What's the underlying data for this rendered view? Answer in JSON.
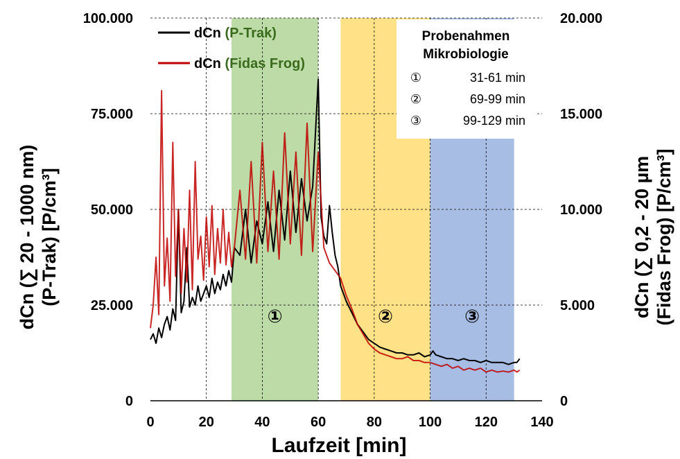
{
  "chart_data": {
    "type": "line",
    "xlabel": "Laufzeit [min]",
    "ylabel_left": [
      "dCn (∑ 20 - 1000 nm)",
      "(P-Trak) [P/cm³]"
    ],
    "ylabel_right": [
      "dCn (∑ 0,2 - 20 µm",
      "(Fidas Frog) [P/cm³]"
    ],
    "xlim": [
      0,
      140
    ],
    "ylim_left": [
      0,
      100000
    ],
    "ylim_right": [
      0,
      20000
    ],
    "x_ticks": [
      0,
      20,
      40,
      60,
      80,
      100,
      120,
      140
    ],
    "x_tick_labels": [
      "0",
      "20",
      "40",
      "60",
      "80",
      "100",
      "120",
      "140"
    ],
    "y_ticks_left": [
      0,
      25000,
      50000,
      75000,
      100000
    ],
    "y_tick_labels_left": [
      "0",
      "25.000",
      "50.000",
      "75.000",
      "100.000"
    ],
    "y_ticks_right": [
      0,
      5000,
      10000,
      15000,
      20000
    ],
    "y_tick_labels_right": [
      "0",
      "5.000",
      "10.000",
      "15.000",
      "20.000"
    ],
    "grid": "dashed",
    "legend_position": "top-left",
    "shaded_regions": [
      {
        "x0": 29,
        "x1": 60,
        "color": "#a9d18e",
        "label": "①"
      },
      {
        "x0": 68,
        "x1": 100,
        "color": "#ffd966",
        "label": "②"
      },
      {
        "x0": 100,
        "x1": 130,
        "color": "#8faadc",
        "label": "③"
      }
    ],
    "annotation": {
      "title": [
        "Probenahmen",
        "Mikrobiologie"
      ],
      "items": [
        {
          "mark": "①",
          "text": "31-61 min"
        },
        {
          "mark": "②",
          "text": "69-99 min"
        },
        {
          "mark": "③",
          "text": "99-129 min"
        }
      ]
    },
    "series": [
      {
        "name": "dCn",
        "name_suffix": "(P-Trak)",
        "axis": "left",
        "color": "#000000",
        "x": [
          0,
          1,
          2,
          3,
          4,
          5,
          6,
          7,
          8,
          9,
          10,
          11,
          12,
          13,
          14,
          15,
          16,
          17,
          18,
          19,
          20,
          21,
          22,
          23,
          24,
          25,
          26,
          27,
          28,
          29,
          30,
          32,
          34,
          36,
          38,
          40,
          42,
          44,
          46,
          48,
          50,
          52,
          54,
          56,
          58,
          59,
          60,
          61,
          62,
          63,
          64,
          65,
          66,
          67,
          68,
          70,
          72,
          74,
          76,
          78,
          80,
          82,
          84,
          86,
          88,
          90,
          92,
          94,
          96,
          98,
          100,
          101,
          102,
          104,
          106,
          108,
          110,
          112,
          114,
          116,
          118,
          120,
          122,
          124,
          126,
          128,
          130,
          131,
          132
        ],
        "y": [
          16000,
          17500,
          15000,
          19000,
          16500,
          20000,
          22000,
          18500,
          24000,
          21000,
          50000,
          23000,
          26000,
          40000,
          24500,
          27000,
          25000,
          30000,
          26000,
          28000,
          30000,
          27000,
          32000,
          28000,
          31000,
          29000,
          33000,
          30000,
          34000,
          31000,
          40000,
          38000,
          50000,
          36000,
          47000,
          41000,
          52000,
          39000,
          55000,
          42000,
          60000,
          44000,
          58000,
          47000,
          56000,
          70000,
          84000,
          48000,
          43000,
          41000,
          51000,
          44000,
          38000,
          35000,
          30000,
          26000,
          23000,
          20000,
          18000,
          16000,
          15000,
          14000,
          13500,
          13000,
          12500,
          12500,
          12000,
          12000,
          12500,
          11500,
          12000,
          13000,
          12000,
          11500,
          11000,
          11000,
          10500,
          11000,
          10500,
          10500,
          10000,
          10500,
          10000,
          10000,
          10000,
          9500,
          10000,
          10000,
          11000
        ]
      },
      {
        "name": "dCn",
        "name_suffix": "(Fidas Frog)",
        "axis": "right",
        "color": "#c00000",
        "x": [
          0,
          1,
          2,
          3,
          4,
          5,
          6,
          7,
          8,
          9,
          10,
          11,
          12,
          13,
          14,
          15,
          16,
          17,
          18,
          19,
          20,
          21,
          22,
          23,
          24,
          25,
          26,
          27,
          28,
          29,
          30,
          32,
          34,
          36,
          38,
          40,
          42,
          44,
          46,
          48,
          50,
          52,
          54,
          56,
          58,
          60,
          62,
          64,
          66,
          68,
          70,
          72,
          74,
          76,
          78,
          80,
          82,
          84,
          86,
          88,
          90,
          92,
          94,
          96,
          98,
          100,
          102,
          104,
          106,
          108,
          110,
          112,
          114,
          116,
          118,
          120,
          122,
          124,
          126,
          128,
          130,
          131,
          132
        ],
        "y": [
          3800,
          5000,
          7500,
          4500,
          16200,
          6000,
          8500,
          5200,
          13500,
          6500,
          10000,
          5600,
          9000,
          6200,
          11000,
          5800,
          12500,
          7400,
          8600,
          6300,
          9600,
          7000,
          10200,
          6600,
          9000,
          7200,
          10000,
          7100,
          8800,
          7000,
          8000,
          11000,
          7400,
          12500,
          7200,
          13500,
          7800,
          12000,
          7400,
          14000,
          8200,
          13000,
          7600,
          14500,
          7800,
          13000,
          8000,
          7200,
          6800,
          6400,
          5500,
          4800,
          4000,
          3500,
          3000,
          2700,
          2500,
          2400,
          2300,
          2200,
          2200,
          2300,
          2100,
          2100,
          2000,
          2000,
          1900,
          1800,
          1900,
          1700,
          1800,
          1600,
          1700,
          1600,
          1700,
          1500,
          1600,
          1500,
          1550,
          1500,
          1600,
          1500,
          1600
        ]
      }
    ]
  }
}
